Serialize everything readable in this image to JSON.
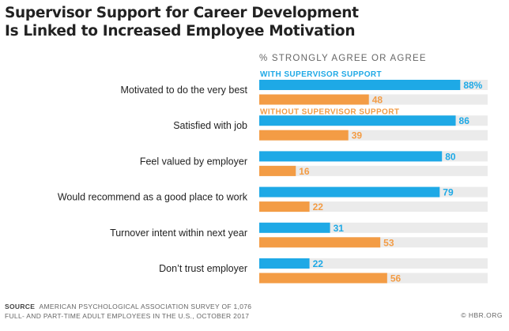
{
  "chart_data": {
    "type": "bar",
    "orientation": "horizontal",
    "title": [
      "Supervisor Support for Career Development",
      "Is Linked to Increased Employee Motivation"
    ],
    "subtitle": "% STRONGLY AGREE OR AGREE",
    "categories": [
      "Motivated to do the very best",
      "Satisfied with job",
      "Feel valued by employer",
      "Would recommend as a good place to work",
      "Turnover intent within next year",
      "Don’t trust employer"
    ],
    "series": [
      {
        "name": "WITH SUPERVISOR SUPPORT",
        "color": "#1ea9e6",
        "values": [
          88,
          86,
          80,
          79,
          31,
          22
        ],
        "labels": [
          "88%",
          "86",
          "80",
          "79",
          "31",
          "22"
        ]
      },
      {
        "name": "WITHOUT SUPERVISOR  SUPPORT",
        "color": "#f39c45",
        "values": [
          48,
          39,
          16,
          22,
          53,
          56
        ],
        "labels": [
          "48",
          "39",
          "16",
          "22",
          "53",
          "56"
        ]
      }
    ],
    "xlim": [
      0,
      100
    ],
    "background_track_color": "#ebebeb"
  },
  "footer": {
    "source_label": "SOURCE",
    "source_line1": "AMERICAN PSYCHOLOGICAL ASSOCIATION SURVEY OF 1,076",
    "source_line2": "FULL- AND PART-TIME ADULT EMPLOYEES IN THE U.S., OCTOBER 2017",
    "credit": "© HBR.ORG"
  }
}
